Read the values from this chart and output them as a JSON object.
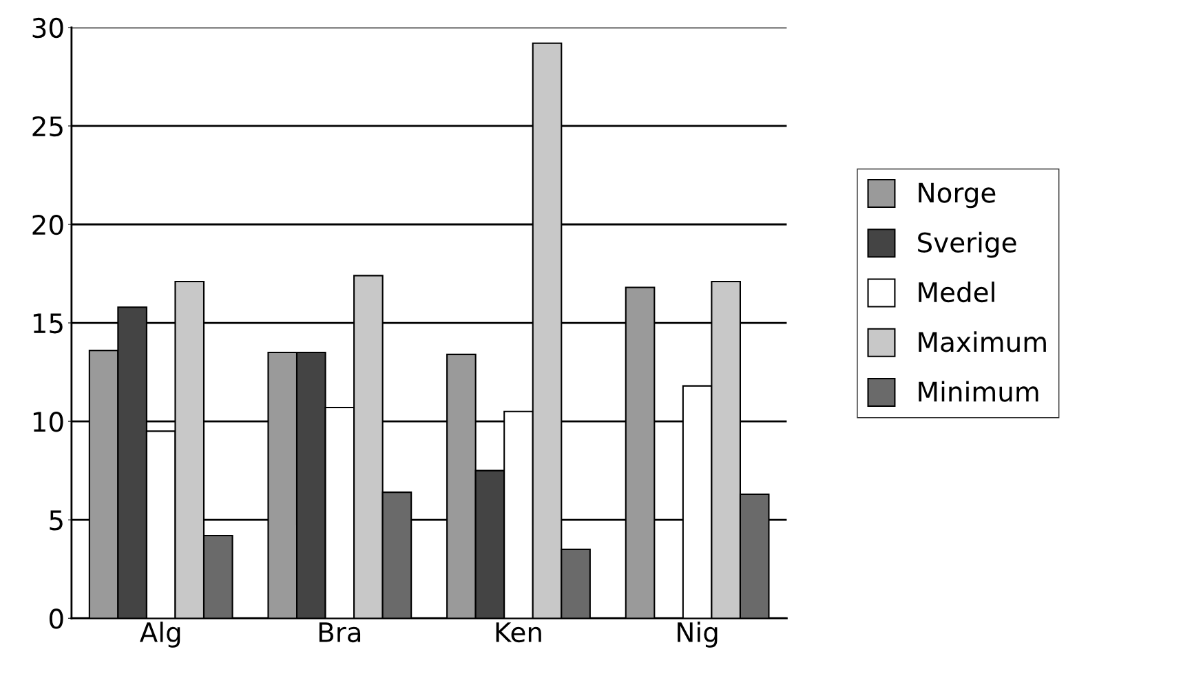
{
  "chart_data": {
    "type": "bar",
    "categories": [
      "Alg",
      "Bra",
      "Ken",
      "Nig"
    ],
    "series": [
      {
        "name": "Norge",
        "color": "#9a9a9a",
        "values": [
          13.6,
          13.5,
          13.4,
          16.8
        ]
      },
      {
        "name": "Sverige",
        "color": "#444444",
        "values": [
          15.8,
          13.5,
          7.5,
          null
        ]
      },
      {
        "name": "Medel",
        "color": "#ffffff",
        "values": [
          9.5,
          10.7,
          10.5,
          11.8
        ]
      },
      {
        "name": "Maximum",
        "color": "#c8c8c8",
        "values": [
          17.1,
          17.4,
          29.2,
          17.1
        ]
      },
      {
        "name": "Minimum",
        "color": "#6a6a6a",
        "values": [
          4.2,
          6.4,
          3.5,
          6.3
        ]
      }
    ],
    "ylim": [
      0,
      30
    ],
    "yticks": [
      0,
      5,
      10,
      15,
      20,
      25,
      30
    ],
    "grid": "y",
    "legend": "right"
  }
}
